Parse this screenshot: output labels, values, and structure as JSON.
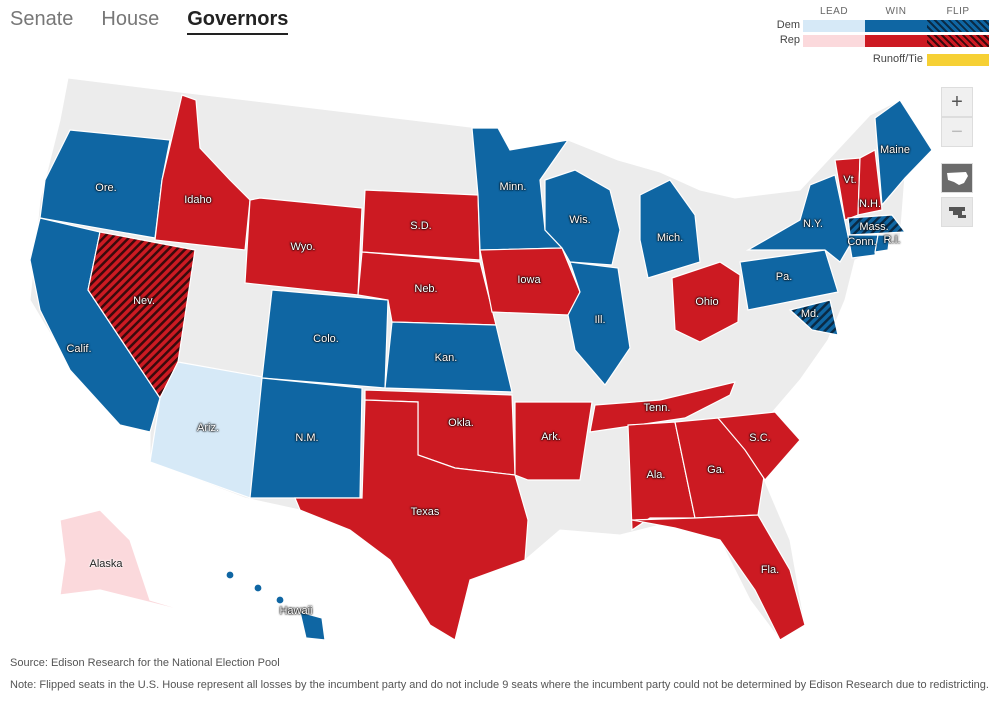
{
  "tabs": [
    {
      "label": "Senate",
      "active": false
    },
    {
      "label": "House",
      "active": false
    },
    {
      "label": "Governors",
      "active": true
    }
  ],
  "legend": {
    "headers": [
      "LEAD",
      "WIN",
      "FLIP"
    ],
    "rows": [
      "Dem",
      "Rep"
    ],
    "runoff_label": "Runoff/Tie",
    "colors": {
      "dem_lead": "#d6e9f7",
      "dem_win": "#0f66a3",
      "dem_flip": "#0f5a92",
      "rep_lead": "#fbd9dc",
      "rep_win": "#cc1a22",
      "rep_flip": "#a0161b",
      "runoff": "#f6d034",
      "no_race": "#ececec"
    }
  },
  "zoom": {
    "in_label": "+",
    "out_label": "−"
  },
  "view_icons": [
    "us-map-icon",
    "district-map-icon"
  ],
  "states": [
    {
      "name": "Ore.",
      "status": "dem_win"
    },
    {
      "name": "Calif.",
      "status": "dem_win"
    },
    {
      "name": "Idaho",
      "status": "rep_win"
    },
    {
      "name": "Nev.",
      "status": "rep_flip"
    },
    {
      "name": "Wyo.",
      "status": "rep_win"
    },
    {
      "name": "Ariz.",
      "status": "dem_lead"
    },
    {
      "name": "Colo.",
      "status": "dem_win"
    },
    {
      "name": "N.M.",
      "status": "dem_win"
    },
    {
      "name": "S.D.",
      "status": "rep_win"
    },
    {
      "name": "Neb.",
      "status": "rep_win"
    },
    {
      "name": "Kan.",
      "status": "dem_win"
    },
    {
      "name": "Okla.",
      "status": "rep_win"
    },
    {
      "name": "Texas",
      "status": "rep_win"
    },
    {
      "name": "Minn.",
      "status": "dem_win"
    },
    {
      "name": "Iowa",
      "status": "rep_win"
    },
    {
      "name": "Ark.",
      "status": "rep_win"
    },
    {
      "name": "Wis.",
      "status": "dem_win"
    },
    {
      "name": "Ill.",
      "status": "dem_win"
    },
    {
      "name": "Mich.",
      "status": "dem_win"
    },
    {
      "name": "Ohio",
      "status": "rep_win"
    },
    {
      "name": "Tenn.",
      "status": "rep_win"
    },
    {
      "name": "Ala.",
      "status": "rep_win"
    },
    {
      "name": "Ga.",
      "status": "rep_win"
    },
    {
      "name": "S.C.",
      "status": "rep_win"
    },
    {
      "name": "Fla.",
      "status": "rep_win"
    },
    {
      "name": "Pa.",
      "status": "dem_win"
    },
    {
      "name": "N.Y.",
      "status": "dem_win"
    },
    {
      "name": "Md.",
      "status": "dem_flip"
    },
    {
      "name": "Vt.",
      "status": "rep_win"
    },
    {
      "name": "N.H.",
      "status": "rep_win"
    },
    {
      "name": "Maine",
      "status": "dem_win"
    },
    {
      "name": "Mass.",
      "status": "dem_flip"
    },
    {
      "name": "Conn.",
      "status": "dem_win"
    },
    {
      "name": "R.I.",
      "status": "dem_win"
    },
    {
      "name": "Alaska",
      "status": "rep_lead"
    },
    {
      "name": "Hawaii",
      "status": "dem_win"
    }
  ],
  "footer": {
    "source": "Source: Edison Research for the National Election Pool",
    "note": "Note: Flipped seats in the U.S. House represent all losses by the incumbent party and do not include 9 seats where the incumbent party could not be determined by Edison Research due to redistricting."
  }
}
